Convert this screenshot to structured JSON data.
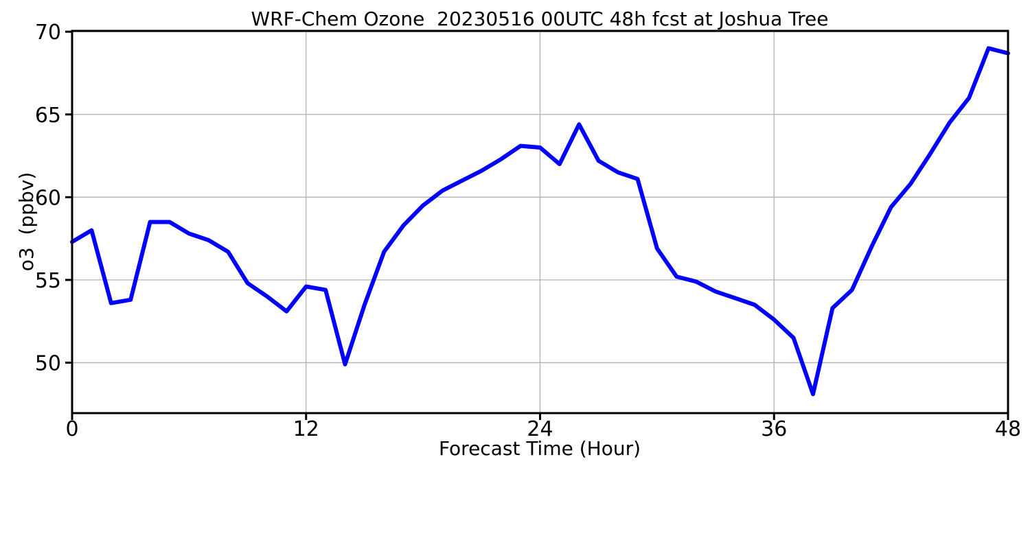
{
  "figure": {
    "background": "#ffffff"
  },
  "chart_data": {
    "type": "line",
    "title": "WRF-Chem Ozone  20230516 00UTC 48h fcst at Joshua Tree",
    "xlabel": "Forecast Time (Hour)",
    "ylabel": "o3  (ppbv)",
    "x": [
      0,
      1,
      2,
      3,
      4,
      5,
      6,
      7,
      8,
      9,
      10,
      11,
      12,
      13,
      14,
      15,
      16,
      17,
      18,
      19,
      20,
      21,
      22,
      23,
      24,
      25,
      26,
      27,
      28,
      29,
      30,
      31,
      32,
      33,
      34,
      35,
      36,
      37,
      38,
      39,
      40,
      41,
      42,
      43,
      44,
      45,
      46,
      47,
      48
    ],
    "series": [
      {
        "name": "o3",
        "color": "#0000ff",
        "values": [
          57.3,
          58.0,
          53.6,
          53.8,
          58.5,
          58.5,
          57.8,
          57.4,
          56.7,
          54.8,
          54.0,
          53.1,
          54.6,
          54.4,
          49.9,
          53.5,
          56.7,
          58.3,
          59.5,
          60.4,
          61.0,
          61.6,
          62.3,
          63.1,
          63.0,
          62.0,
          64.4,
          62.2,
          61.5,
          61.1,
          56.9,
          55.2,
          54.9,
          54.3,
          53.9,
          53.5,
          52.6,
          51.5,
          48.1,
          53.3,
          54.4,
          57.0,
          59.4,
          60.8,
          62.6,
          64.5,
          66.0,
          69.0,
          68.7
        ]
      }
    ],
    "xlim": [
      0,
      48
    ],
    "ylim": [
      46.95,
      70.05
    ],
    "xticks": [
      0,
      12,
      24,
      36,
      48
    ],
    "yticks": [
      50,
      55,
      60,
      65,
      70
    ],
    "grid": true,
    "grid_color": "#b0b0b0",
    "axis_color": "#000000",
    "legend": "none"
  }
}
